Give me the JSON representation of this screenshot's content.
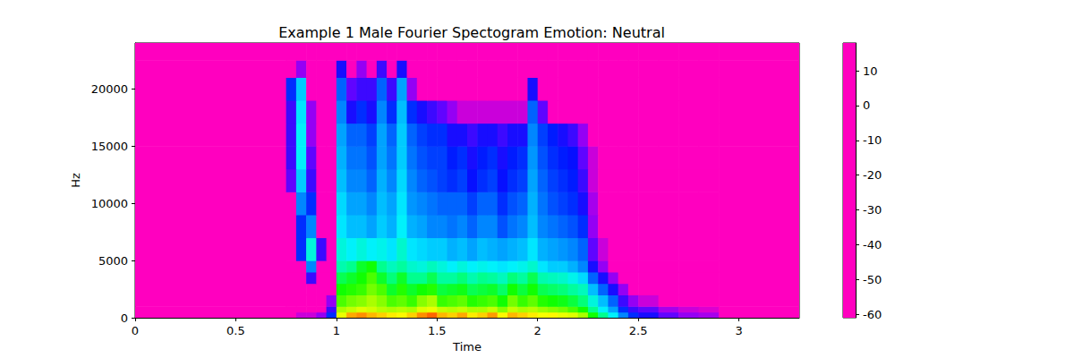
{
  "chart_data": {
    "type": "heatmap",
    "title": "Example 1 Male Fourier Spectogram Emotion: Neutral",
    "x_label": "Time",
    "y_label": "Hz",
    "xlim": [
      0,
      3.3
    ],
    "xticks": [
      0,
      0.5,
      1,
      1.5,
      2,
      2.5,
      3
    ],
    "ylim": [
      0,
      24000
    ],
    "yticks": [
      0,
      5000,
      10000,
      15000,
      20000
    ],
    "x_bins": [
      0,
      0.75,
      0.8,
      0.85,
      0.9,
      0.95,
      1,
      1.05,
      1.1,
      1.15,
      1.2,
      1.25,
      1.3,
      1.35,
      1.4,
      1.45,
      1.5,
      1.55,
      1.6,
      1.65,
      1.7,
      1.75,
      1.8,
      1.85,
      1.9,
      1.95,
      2,
      2.05,
      2.1,
      2.15,
      2.2,
      2.25,
      2.3,
      2.35,
      2.4,
      2.45,
      2.5,
      2.6,
      2.7,
      2.8,
      2.9,
      3.3
    ],
    "y_bins": [
      0,
      500,
      1000,
      2000,
      3000,
      4000,
      5000,
      7000,
      9000,
      11000,
      13000,
      15000,
      17000,
      19000,
      21000,
      22500,
      24000
    ],
    "cells": [
      [
        -61,
        -61,
        -58,
        -58,
        -55,
        -45,
        -5,
        3,
        5,
        2,
        0,
        -2,
        -3,
        0,
        5,
        8,
        2,
        0,
        3,
        -2,
        0,
        4,
        -3,
        2,
        0,
        -2,
        -4,
        -3,
        -5,
        -6,
        -10,
        -18,
        -25,
        -32,
        -40,
        -45,
        -48,
        -52,
        -55,
        -56,
        -61
      ],
      [
        -61,
        -61,
        -61,
        -61,
        -61,
        -50,
        -10,
        -8,
        -6,
        -7,
        -9,
        -10,
        -9,
        -10,
        -6,
        -5,
        -8,
        -9,
        -8,
        -10,
        -10,
        -8,
        -12,
        -8,
        -10,
        -9,
        -11,
        -12,
        -13,
        -15,
        -18,
        -25,
        -32,
        -38,
        -45,
        -50,
        -52,
        -56,
        -58,
        -59,
        -61
      ],
      [
        -61,
        -61,
        -61,
        -61,
        -61,
        -55,
        -15,
        -13,
        -12,
        -10,
        -12,
        -15,
        -14,
        -16,
        -12,
        -10,
        -16,
        -15,
        -14,
        -17,
        -16,
        -15,
        -18,
        -13,
        -16,
        -14,
        -17,
        -18,
        -19,
        -21,
        -24,
        -30,
        -36,
        -42,
        -50,
        -55,
        -58,
        -61,
        -61,
        -61,
        -61
      ],
      [
        -61,
        -61,
        -61,
        -61,
        -61,
        -61,
        -18,
        -17,
        -16,
        -13,
        -15,
        -20,
        -17,
        -20,
        -18,
        -17,
        -21,
        -20,
        -19,
        -22,
        -21,
        -20,
        -23,
        -18,
        -21,
        -18,
        -22,
        -23,
        -24,
        -26,
        -28,
        -36,
        -42,
        -48,
        -55,
        -61,
        -61,
        -61,
        -61,
        -61,
        -61
      ],
      [
        -61,
        -61,
        -61,
        -50,
        -61,
        -61,
        -22,
        -20,
        -18,
        -15,
        -20,
        -24,
        -20,
        -25,
        -25,
        -22,
        -26,
        -26,
        -24,
        -27,
        -25,
        -26,
        -28,
        -24,
        -26,
        -22,
        -27,
        -28,
        -29,
        -31,
        -34,
        -42,
        -48,
        -55,
        -61,
        -61,
        -61,
        -61,
        -61,
        -61,
        -61
      ],
      [
        -61,
        -61,
        -61,
        -40,
        -61,
        -61,
        -27,
        -25,
        -20,
        -18,
        -25,
        -28,
        -26,
        -29,
        -30,
        -28,
        -30,
        -32,
        -30,
        -32,
        -31,
        -32,
        -33,
        -32,
        -31,
        -29,
        -33,
        -35,
        -35,
        -37,
        -40,
        -48,
        -55,
        -61,
        -61,
        -61,
        -61,
        -61,
        -61,
        -61,
        -61
      ],
      [
        -61,
        -61,
        -45,
        -30,
        -50,
        -61,
        -30,
        -32,
        -30,
        -32,
        -31,
        -33,
        -29,
        -33,
        -34,
        -35,
        -35,
        -37,
        -36,
        -38,
        -36,
        -37,
        -38,
        -37,
        -36,
        -33,
        -37,
        -38,
        -39,
        -40,
        -42,
        -52,
        -58,
        -61,
        -61,
        -61,
        -61,
        -61,
        -61,
        -61,
        -61
      ],
      [
        -61,
        -61,
        -45,
        -40,
        -61,
        -61,
        -33,
        -36,
        -36,
        -38,
        -35,
        -37,
        -32,
        -37,
        -38,
        -40,
        -40,
        -41,
        -40,
        -42,
        -40,
        -40,
        -43,
        -41,
        -40,
        -36,
        -40,
        -41,
        -42,
        -43,
        -45,
        -55,
        -61,
        -61,
        -61,
        -61,
        -61,
        -61,
        -61,
        -61,
        -61
      ],
      [
        -61,
        -61,
        -40,
        -45,
        -61,
        -61,
        -34,
        -38,
        -38,
        -40,
        -36,
        -38,
        -33,
        -39,
        -40,
        -41,
        -42,
        -42,
        -42,
        -44,
        -42,
        -42,
        -45,
        -43,
        -42,
        -37,
        -41,
        -43,
        -44,
        -45,
        -48,
        -56,
        -61,
        -61,
        -61,
        -61,
        -61,
        -61,
        -61,
        -61,
        -61
      ],
      [
        -61,
        -52,
        -35,
        -50,
        -61,
        -61,
        -36,
        -40,
        -40,
        -42,
        -37,
        -40,
        -34,
        -40,
        -42,
        -43,
        -44,
        -45,
        -44,
        -47,
        -45,
        -44,
        -47,
        -45,
        -44,
        -38,
        -42,
        -44,
        -45,
        -46,
        -50,
        -58,
        -61,
        -61,
        -61,
        -61,
        -61,
        -61,
        -61,
        -61,
        -61
      ],
      [
        -61,
        -50,
        -32,
        -52,
        -61,
        -61,
        -37,
        -41,
        -41,
        -43,
        -38,
        -41,
        -35,
        -41,
        -43,
        -44,
        -44,
        -46,
        -45,
        -48,
        -46,
        -45,
        -48,
        -46,
        -45,
        -39,
        -43,
        -45,
        -46,
        -47,
        -52,
        -58,
        -61,
        -61,
        -61,
        -61,
        -61,
        -61,
        -61,
        -61,
        -61
      ],
      [
        -61,
        -50,
        -32,
        -55,
        -61,
        -61,
        -38,
        -42,
        -42,
        -44,
        -38,
        -42,
        -35,
        -42,
        -44,
        -45,
        -45,
        -48,
        -48,
        -50,
        -48,
        -48,
        -50,
        -48,
        -48,
        -40,
        -44,
        -46,
        -48,
        -50,
        -55,
        -61,
        -61,
        -61,
        -61,
        -61,
        -61,
        -61,
        -61,
        -61,
        -61
      ],
      [
        -61,
        -50,
        -33,
        -55,
        -61,
        -61,
        -40,
        -48,
        -45,
        -48,
        -40,
        -45,
        -36,
        -45,
        -48,
        -50,
        -52,
        -55,
        -58,
        -58,
        -58,
        -58,
        -58,
        -58,
        -58,
        -42,
        -52,
        -61,
        -61,
        -61,
        -61,
        -61,
        -61,
        -61,
        -61,
        -61,
        -61,
        -61,
        -61,
        -61,
        -61
      ],
      [
        -61,
        -45,
        -35,
        -61,
        -61,
        -61,
        -42,
        -52,
        -50,
        -50,
        -42,
        -50,
        -38,
        -55,
        -61,
        -61,
        -61,
        -61,
        -61,
        -61,
        -61,
        -61,
        -61,
        -61,
        -61,
        -48,
        -61,
        -61,
        -61,
        -61,
        -61,
        -61,
        -61,
        -61,
        -61,
        -61,
        -61,
        -61,
        -61,
        -61,
        -61
      ],
      [
        -61,
        -61,
        -55,
        -61,
        -61,
        -61,
        -48,
        -61,
        -55,
        -61,
        -50,
        -61,
        -48,
        -61,
        -61,
        -61,
        -61,
        -61,
        -61,
        -61,
        -61,
        -61,
        -61,
        -61,
        -61,
        -61,
        -61,
        -61,
        -61,
        -61,
        -61,
        -61,
        -61,
        -61,
        -61,
        -61,
        -61,
        -61,
        -61,
        -61,
        -61
      ],
      [
        -61,
        -61,
        -61,
        -61,
        -61,
        -61,
        -61,
        -61,
        -61,
        -61,
        -61,
        -61,
        -61,
        -61,
        -61,
        -61,
        -61,
        -61,
        -61,
        -61,
        -61,
        -61,
        -61,
        -61,
        -61,
        -61,
        -61,
        -61,
        -61,
        -61,
        -61,
        -61,
        -61,
        -61,
        -61,
        -61,
        -61,
        -61,
        -61,
        -61,
        -61
      ]
    ],
    "colorbar_range": [
      -61,
      18
    ],
    "colorbar_ticks": [
      -60,
      -50,
      -40,
      -30,
      -20,
      -10,
      0,
      10
    ]
  }
}
